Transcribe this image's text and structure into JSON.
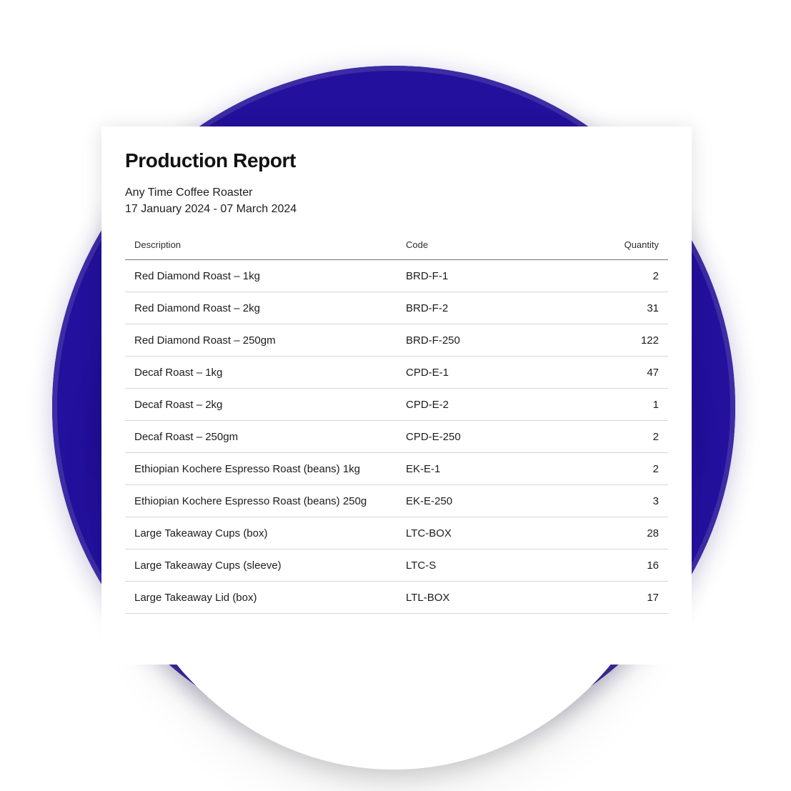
{
  "report": {
    "title": "Production Report",
    "company": "Any Time Coffee Roaster",
    "date_range": "17 January 2024 - 07 March 2024"
  },
  "table": {
    "columns": {
      "description": "Description",
      "code": "Code",
      "quantity": "Quantity"
    },
    "rows": [
      {
        "description": "Red Diamond Roast – 1kg",
        "code": "BRD-F-1",
        "quantity": "2"
      },
      {
        "description": "Red Diamond Roast – 2kg",
        "code": "BRD-F-2",
        "quantity": "31"
      },
      {
        "description": "Red Diamond Roast – 250gm",
        "code": "BRD-F-250",
        "quantity": "122"
      },
      {
        "description": "Decaf Roast – 1kg",
        "code": "CPD-E-1",
        "quantity": "47"
      },
      {
        "description": "Decaf Roast – 2kg",
        "code": "CPD-E-2",
        "quantity": "1"
      },
      {
        "description": "Decaf Roast – 250gm",
        "code": "CPD-E-250",
        "quantity": "2"
      },
      {
        "description": "Ethiopian Kochere Espresso Roast (beans) 1kg",
        "code": "EK-E-1",
        "quantity": "2"
      },
      {
        "description": "Ethiopian Kochere Espresso Roast (beans) 250g",
        "code": "EK-E-250",
        "quantity": "3"
      },
      {
        "description": "Large Takeaway Cups (box)",
        "code": "LTC-BOX",
        "quantity": "28"
      },
      {
        "description": "Large Takeaway Cups (sleeve)",
        "code": "LTC-S",
        "quantity": "16"
      },
      {
        "description": "Large Takeaway Lid (box)",
        "code": "LTL-BOX",
        "quantity": "17"
      }
    ]
  },
  "colors": {
    "accent_blue": "#23109C",
    "accent_blue_rim": "#3C2CA5",
    "page_background": "#FFFFFF",
    "text_primary": "#1C1C1C",
    "row_border": "#D6D6D6",
    "header_border": "#757575"
  }
}
